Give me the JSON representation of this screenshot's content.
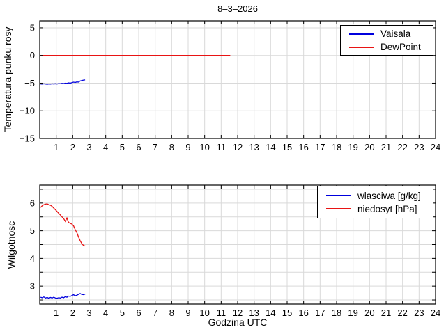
{
  "figure": {
    "background": "#ffffff"
  },
  "chart_data": [
    {
      "type": "line",
      "title": "8–3–2026",
      "xlabel": "",
      "ylabel": "Temperatura punku rosy",
      "xlim": [
        0,
        24
      ],
      "ylim": [
        -15,
        6.25
      ],
      "grid": true,
      "legend_position": "top-right",
      "xticks": [
        1,
        2,
        3,
        4,
        5,
        6,
        7,
        8,
        9,
        10,
        11,
        12,
        13,
        14,
        15,
        16,
        17,
        18,
        19,
        20,
        21,
        22,
        23,
        24
      ],
      "ygrid": [
        5,
        0,
        -5,
        -10,
        -15
      ],
      "yticks": [
        {
          "v": 5,
          "label": "5"
        },
        {
          "v": 0,
          "label": "0"
        },
        {
          "v": -5,
          "label": "−5"
        },
        {
          "v": -10,
          "label": "−10"
        },
        {
          "v": -15,
          "label": "−15"
        }
      ],
      "series": [
        {
          "name": "Vaisala",
          "color": "#0000dd",
          "points": [
            [
              0.05,
              -5.15
            ],
            [
              0.15,
              -5.18
            ],
            [
              0.25,
              -5.12
            ],
            [
              0.35,
              -5.16
            ],
            [
              0.45,
              -5.2
            ],
            [
              0.55,
              -5.14
            ],
            [
              0.65,
              -5.18
            ],
            [
              0.75,
              -5.12
            ],
            [
              0.85,
              -5.16
            ],
            [
              0.95,
              -5.1
            ],
            [
              1.05,
              -5.15
            ],
            [
              1.15,
              -5.08
            ],
            [
              1.25,
              -5.12
            ],
            [
              1.35,
              -5.04
            ],
            [
              1.45,
              -5.08
            ],
            [
              1.55,
              -5.0
            ],
            [
              1.65,
              -5.04
            ],
            [
              1.75,
              -4.95
            ],
            [
              1.85,
              -5.0
            ],
            [
              1.95,
              -4.9
            ],
            [
              2.05,
              -4.82
            ],
            [
              2.15,
              -4.88
            ],
            [
              2.25,
              -4.78
            ],
            [
              2.35,
              -4.82
            ],
            [
              2.45,
              -4.62
            ],
            [
              2.55,
              -4.52
            ],
            [
              2.65,
              -4.45
            ],
            [
              2.75,
              -4.42
            ]
          ]
        },
        {
          "name": "DewPoint",
          "color": "#e81414",
          "points": [
            [
              0.05,
              0
            ],
            [
              11.55,
              0
            ]
          ]
        }
      ]
    },
    {
      "type": "line",
      "title": "",
      "xlabel": "Godzina UTC",
      "ylabel": "Wilgotnosc",
      "xlim": [
        0,
        24
      ],
      "ylim": [
        2.35,
        6.65
      ],
      "grid": true,
      "legend_position": "top-right",
      "xticks": [
        1,
        2,
        3,
        4,
        5,
        6,
        7,
        8,
        9,
        10,
        11,
        12,
        13,
        14,
        15,
        16,
        17,
        18,
        19,
        20,
        21,
        22,
        23,
        24
      ],
      "ygrid": [
        2.5,
        3,
        3.5,
        4,
        4.5,
        5,
        5.5,
        6,
        6.5
      ],
      "yticks": [
        {
          "v": 3,
          "label": "3"
        },
        {
          "v": 4,
          "label": "4"
        },
        {
          "v": 5,
          "label": "5"
        },
        {
          "v": 6,
          "label": "6"
        }
      ],
      "series": [
        {
          "name": "wlasciwa [g/kg]",
          "color": "#0000dd",
          "points": [
            [
              0.05,
              2.6
            ],
            [
              0.15,
              2.58
            ],
            [
              0.25,
              2.61
            ],
            [
              0.35,
              2.57
            ],
            [
              0.45,
              2.59
            ],
            [
              0.55,
              2.56
            ],
            [
              0.65,
              2.59
            ],
            [
              0.75,
              2.57
            ],
            [
              0.85,
              2.6
            ],
            [
              0.95,
              2.57
            ],
            [
              1.05,
              2.56
            ],
            [
              1.15,
              2.58
            ],
            [
              1.25,
              2.57
            ],
            [
              1.35,
              2.6
            ],
            [
              1.45,
              2.58
            ],
            [
              1.55,
              2.62
            ],
            [
              1.65,
              2.6
            ],
            [
              1.75,
              2.64
            ],
            [
              1.85,
              2.63
            ],
            [
              1.95,
              2.66
            ],
            [
              2.05,
              2.69
            ],
            [
              2.15,
              2.65
            ],
            [
              2.25,
              2.67
            ],
            [
              2.35,
              2.7
            ],
            [
              2.45,
              2.73
            ],
            [
              2.55,
              2.7
            ],
            [
              2.65,
              2.69
            ],
            [
              2.75,
              2.71
            ]
          ]
        },
        {
          "name": "niedosyt [hPa]",
          "color": "#e81414",
          "points": [
            [
              0.05,
              5.84
            ],
            [
              0.15,
              5.9
            ],
            [
              0.25,
              5.94
            ],
            [
              0.35,
              5.96
            ],
            [
              0.45,
              5.97
            ],
            [
              0.55,
              5.94
            ],
            [
              0.65,
              5.92
            ],
            [
              0.75,
              5.88
            ],
            [
              0.85,
              5.82
            ],
            [
              0.95,
              5.76
            ],
            [
              1.05,
              5.7
            ],
            [
              1.15,
              5.63
            ],
            [
              1.25,
              5.57
            ],
            [
              1.35,
              5.5
            ],
            [
              1.45,
              5.44
            ],
            [
              1.55,
              5.34
            ],
            [
              1.65,
              5.46
            ],
            [
              1.75,
              5.3
            ],
            [
              1.85,
              5.27
            ],
            [
              1.95,
              5.24
            ],
            [
              2.05,
              5.18
            ],
            [
              2.15,
              5.04
            ],
            [
              2.25,
              4.93
            ],
            [
              2.35,
              4.78
            ],
            [
              2.45,
              4.64
            ],
            [
              2.55,
              4.54
            ],
            [
              2.65,
              4.47
            ],
            [
              2.75,
              4.45
            ]
          ]
        }
      ]
    }
  ]
}
